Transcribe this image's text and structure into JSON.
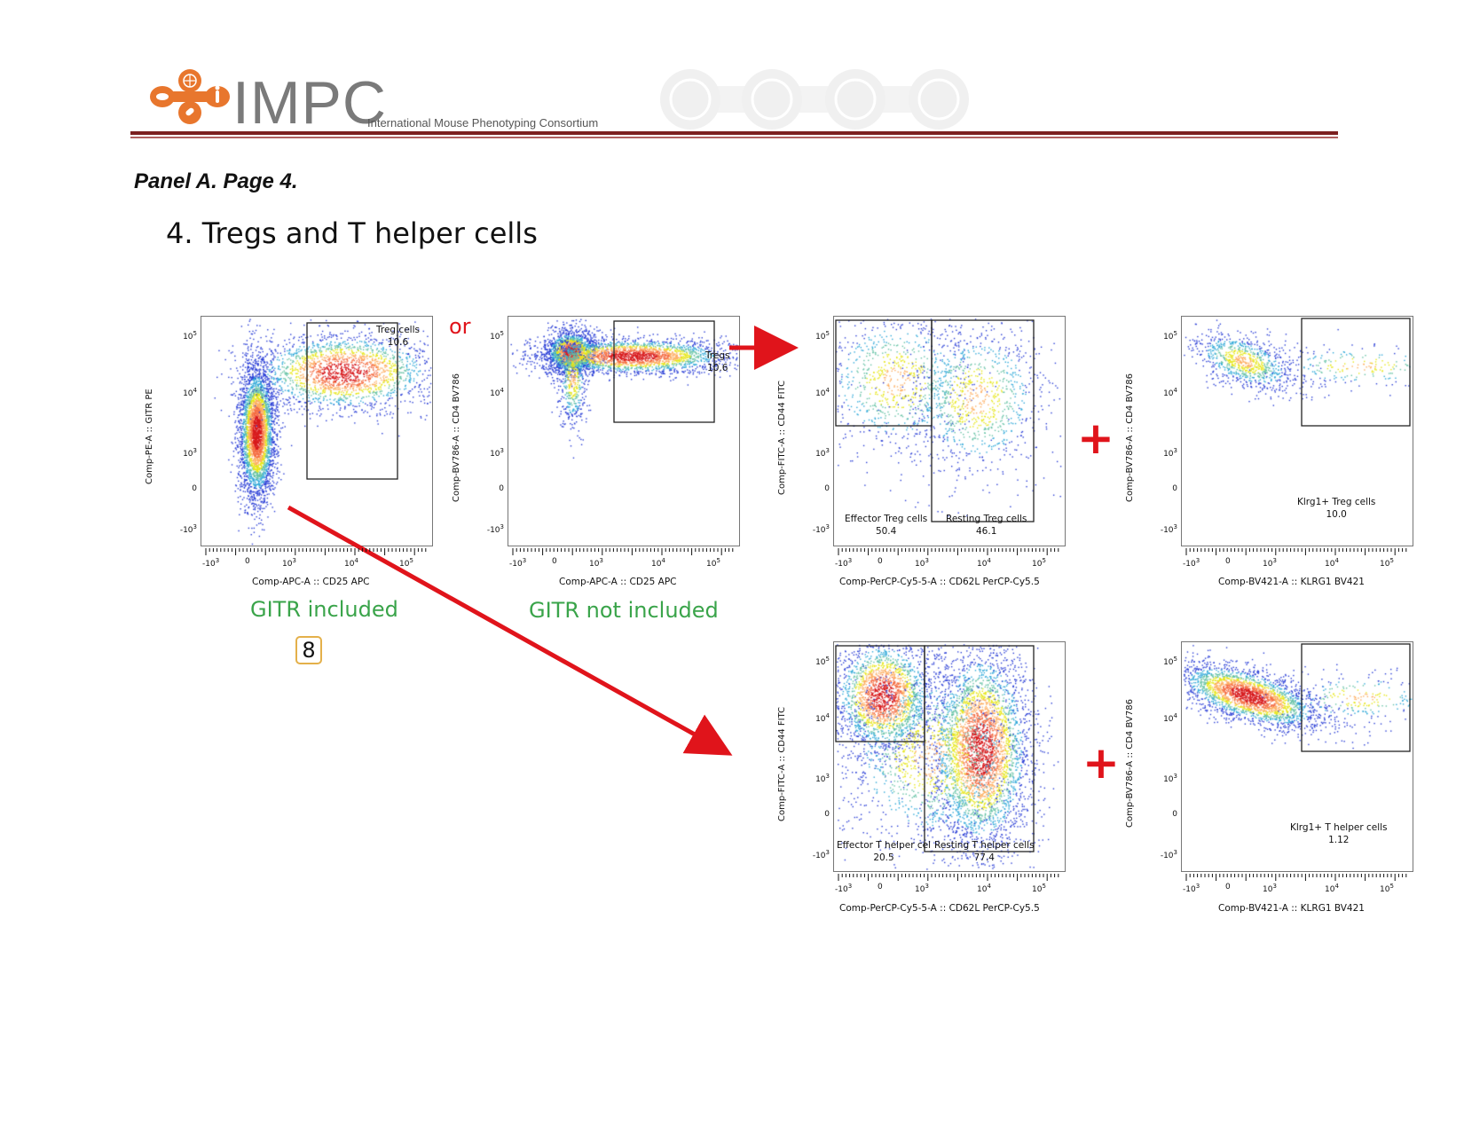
{
  "header": {
    "logo_text": "IMPC",
    "logo_subtitle": "International Mouse Phenotyping Consortium",
    "logo_color": "#e8762d"
  },
  "panel_label": "Panel A. Page 4.",
  "page_title": "4. Tregs and T helper cells",
  "or_text": "or",
  "plus_symbol": "+",
  "page_number": "8",
  "plots": [
    {
      "id": "p1",
      "ylabel": "Comp-PE-A :: GITR PE",
      "xlabel": "Comp-APC-A :: CD25 APC",
      "caption": "GITR included",
      "gates": [
        {
          "name": "Treg cells",
          "value": "10.6"
        }
      ]
    },
    {
      "id": "p2",
      "ylabel": "Comp-BV786-A :: CD4 BV786",
      "xlabel": "Comp-APC-A :: CD25 APC",
      "caption": "GITR not included",
      "gates": [
        {
          "name": "Tregs",
          "value": "10.6"
        }
      ]
    },
    {
      "id": "p3",
      "ylabel": "Comp-FITC-A :: CD44 FITC",
      "xlabel": "Comp-PerCP-Cy5-5-A :: CD62L PerCP-Cy5.5",
      "gates": [
        {
          "name": "Effector Treg cells",
          "value": "50.4"
        },
        {
          "name": "Resting Treg cells",
          "value": "46.1"
        }
      ]
    },
    {
      "id": "p4",
      "ylabel": "Comp-BV786-A :: CD4 BV786",
      "xlabel": "Comp-BV421-A :: KLRG1 BV421",
      "gates": [
        {
          "name": "Klrg1+ Treg cells",
          "value": "10.0"
        }
      ]
    },
    {
      "id": "p5",
      "ylabel": "Comp-FITC-A :: CD44 FITC",
      "xlabel": "Comp-PerCP-Cy5-5-A :: CD62L PerCP-Cy5.5",
      "gates": [
        {
          "name": "Effector T helper cel",
          "value": "20.5"
        },
        {
          "name": "Resting T helper cells",
          "value": "77.4"
        }
      ]
    },
    {
      "id": "p6",
      "ylabel": "Comp-BV786-A :: CD4 BV786",
      "xlabel": "Comp-BV421-A :: KLRG1 BV421",
      "gates": [
        {
          "name": "Klrg1+ T helper cells",
          "value": "1.12"
        }
      ]
    }
  ],
  "axis_ticks": {
    "y": [
      "10^5",
      "10^4",
      "10^3",
      "0",
      "-10^3"
    ],
    "x": [
      "-10^3",
      "0",
      "10^3",
      "10^4",
      "10^5"
    ]
  },
  "colors": {
    "arrow": "#e0141b",
    "caption": "#3aa44a",
    "rule": "#7b2020"
  }
}
